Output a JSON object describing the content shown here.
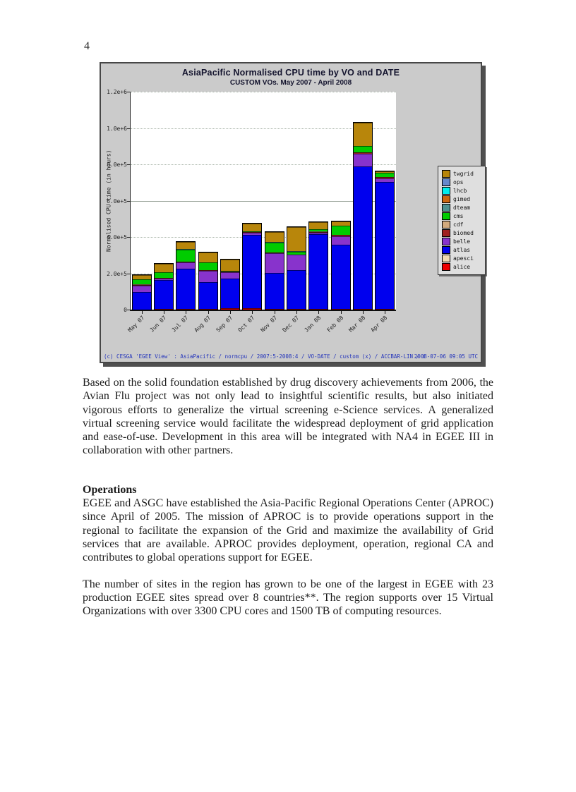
{
  "page": {
    "number": "4"
  },
  "chart": {
    "title": "AsiaPacific Normalised CPU time by VO and DATE",
    "subtitle": "CUSTOM VOs. May 2007 - April 2008",
    "ylabel": "Normalised CPU time (in hours)",
    "yticks": [
      {
        "label": "0",
        "value": 0
      },
      {
        "label": "2.0e+5",
        "value": 200000
      },
      {
        "label": "4.0e+5",
        "value": 400000
      },
      {
        "label": "6.0e+5",
        "value": 600000
      },
      {
        "label": "8.0e+5",
        "value": 800000
      },
      {
        "label": "1.0e+6",
        "value": 1000000
      },
      {
        "label": "1.2e+6",
        "value": 1200000
      }
    ],
    "legend": [
      {
        "name": "twgrid",
        "color": "#b8860b"
      },
      {
        "name": "ops",
        "color": "#6688cc"
      },
      {
        "name": "lhcb",
        "color": "#00eeee"
      },
      {
        "name": "gimed",
        "color": "#cc6611"
      },
      {
        "name": "dteam",
        "color": "#4f9090"
      },
      {
        "name": "cms",
        "color": "#00cc00"
      },
      {
        "name": "cdf",
        "color": "#d2aa7d"
      },
      {
        "name": "biomed",
        "color": "#a02020"
      },
      {
        "name": "belle",
        "color": "#8833cc"
      },
      {
        "name": "atlas",
        "color": "#0000ee"
      },
      {
        "name": "apesci",
        "color": "#f0dcb4"
      },
      {
        "name": "alice",
        "color": "#ee0000"
      }
    ],
    "footer_left": "(c) CESGA 'EGEE View' : AsiaPacific / normcpu / 2007:5-2008:4 / VO-DATE / custom (x) / ACCBAR-LIN / i",
    "footer_right": "2008-07-06 09:05 UTC"
  },
  "chart_data": {
    "type": "bar",
    "stacked": true,
    "title": "AsiaPacific Normalised CPU time by VO and DATE",
    "subtitle": "CUSTOM VOs. May 2007 - April 2008",
    "xlabel": "",
    "ylabel": "Normalised CPU time (in hours)",
    "ylim": [
      0,
      1200000
    ],
    "ytick_values": [
      0,
      200000,
      400000,
      600000,
      800000,
      1000000,
      1200000
    ],
    "grid": true,
    "legend_position": "right",
    "categories": [
      "May 07",
      "Jun 07",
      "Jul 07",
      "Aug 07",
      "Sep 07",
      "Oct 07",
      "Nov 07",
      "Dec 07",
      "Jan 08",
      "Feb 08",
      "Mar 08",
      "Apr 08"
    ],
    "series": [
      {
        "name": "alice",
        "color": "#ee0000",
        "values": [
          1000,
          4000,
          4000,
          2000,
          9000,
          6000,
          4000,
          5000,
          4000,
          3000,
          2000,
          3000
        ]
      },
      {
        "name": "apesci",
        "color": "#f0dcb4",
        "values": [
          0,
          0,
          0,
          0,
          0,
          0,
          0,
          0,
          0,
          0,
          0,
          0
        ]
      },
      {
        "name": "atlas",
        "color": "#0000ee",
        "values": [
          96000,
          160000,
          220000,
          148000,
          160000,
          405000,
          198000,
          212000,
          410000,
          355000,
          785000,
          700000
        ]
      },
      {
        "name": "belle",
        "color": "#8833cc",
        "values": [
          36000,
          5000,
          37000,
          62000,
          35000,
          14000,
          107000,
          84000,
          9000,
          47000,
          73000,
          18000
        ]
      },
      {
        "name": "biomed",
        "color": "#a02020",
        "values": [
          2000,
          5000,
          3000,
          4000,
          4000,
          3000,
          5000,
          3000,
          5000,
          6000,
          5000,
          9000
        ]
      },
      {
        "name": "cdf",
        "color": "#d2aa7d",
        "values": [
          3000,
          0,
          0,
          0,
          0,
          0,
          0,
          0,
          2000,
          2000,
          0,
          0
        ]
      },
      {
        "name": "cms",
        "color": "#00cc00",
        "values": [
          28000,
          30000,
          68000,
          45000,
          6000,
          4000,
          56000,
          16000,
          12000,
          50000,
          36000,
          22000
        ]
      },
      {
        "name": "dteam",
        "color": "#4f9090",
        "values": [
          1000,
          1000,
          1000,
          1000,
          1000,
          1000,
          1000,
          1000,
          1000,
          1000,
          1000,
          1000
        ]
      },
      {
        "name": "gimed",
        "color": "#cc6611",
        "values": [
          0,
          0,
          0,
          0,
          0,
          0,
          0,
          0,
          0,
          0,
          0,
          0
        ]
      },
      {
        "name": "lhcb",
        "color": "#00eeee",
        "values": [
          0,
          0,
          0,
          0,
          0,
          0,
          0,
          0,
          0,
          0,
          0,
          0
        ]
      },
      {
        "name": "ops",
        "color": "#6688cc",
        "values": [
          0,
          0,
          0,
          0,
          0,
          0,
          0,
          0,
          0,
          0,
          0,
          0
        ]
      },
      {
        "name": "twgrid",
        "color": "#b8860b",
        "values": [
          22000,
          48000,
          38000,
          54000,
          62000,
          40000,
          55000,
          132000,
          38000,
          22000,
          128000,
          8000
        ]
      }
    ]
  },
  "body": {
    "paragraph1": "Based on the solid foundation established by drug discovery achievements from 2006, the Avian Flu project was not only lead to insightful scientific results, but also initiated vigorous efforts to generalize the virtual screening e-Science services.  A generalized virtual screening service would facilitate the widespread deployment of grid application and ease-of-use.  Development in this area will be integrated with NA4 in EGEE III in collaboration with other partners.",
    "heading": "Operations",
    "paragraph2": "EGEE and ASGC have established the Asia-Pacific Regional Operations Center (APROC) since April of 2005.  The mission of APROC is to provide operations support in the regional to facilitate the expansion of the Grid and maximize the availability of Grid services that are available.  APROC provides deployment, operation, regional CA and contributes to global operations support for EGEE.",
    "paragraph3": "The number of sites in the region has grown to be one of the largest in EGEE with 23 production EGEE sites spread over 8 countries**.  The region supports over 15 Virtual Organizations with over 3300 CPU cores and 1500 TB of computing resources."
  }
}
